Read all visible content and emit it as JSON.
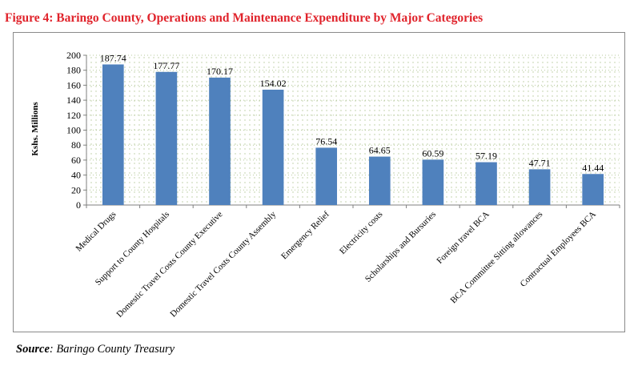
{
  "figure": {
    "title": "Figure 4:  Baringo County, Operations and Maintenance Expenditure by Major Categories"
  },
  "source": {
    "label": "Source",
    "text": ": Baringo County Treasury"
  },
  "colors": {
    "title": "#e0232b",
    "bar": "#4f81bd",
    "grid_dots": "#b5c99a"
  },
  "chart_data": {
    "type": "bar",
    "title": "",
    "xlabel": "",
    "ylabel": "Kshs. Millions",
    "ylim": [
      0,
      200
    ],
    "yticks": [
      0,
      20,
      40,
      60,
      80,
      100,
      120,
      140,
      160,
      180,
      200
    ],
    "grid": true,
    "legend": "none",
    "categories": [
      "Medical Drugs",
      "Support to County Hospitals",
      "Domestic Travel Costs County Executive",
      "Domestic Travel Costs County Assembly",
      "Emergency Relief",
      "Electricity costs",
      "Scholarships and Bursuries",
      "Foreign travel BCA",
      "BCA Committee Sitting allowances",
      "Contractual Employees BCA"
    ],
    "values": [
      187.74,
      177.77,
      170.17,
      154.02,
      76.54,
      64.65,
      60.59,
      57.19,
      47.71,
      41.44
    ],
    "data_labels": [
      "187.74",
      "177.77",
      "170.17",
      "154.02",
      "76.54",
      "64.65",
      "60.59",
      "57.19",
      "47.71",
      "41.44"
    ]
  }
}
